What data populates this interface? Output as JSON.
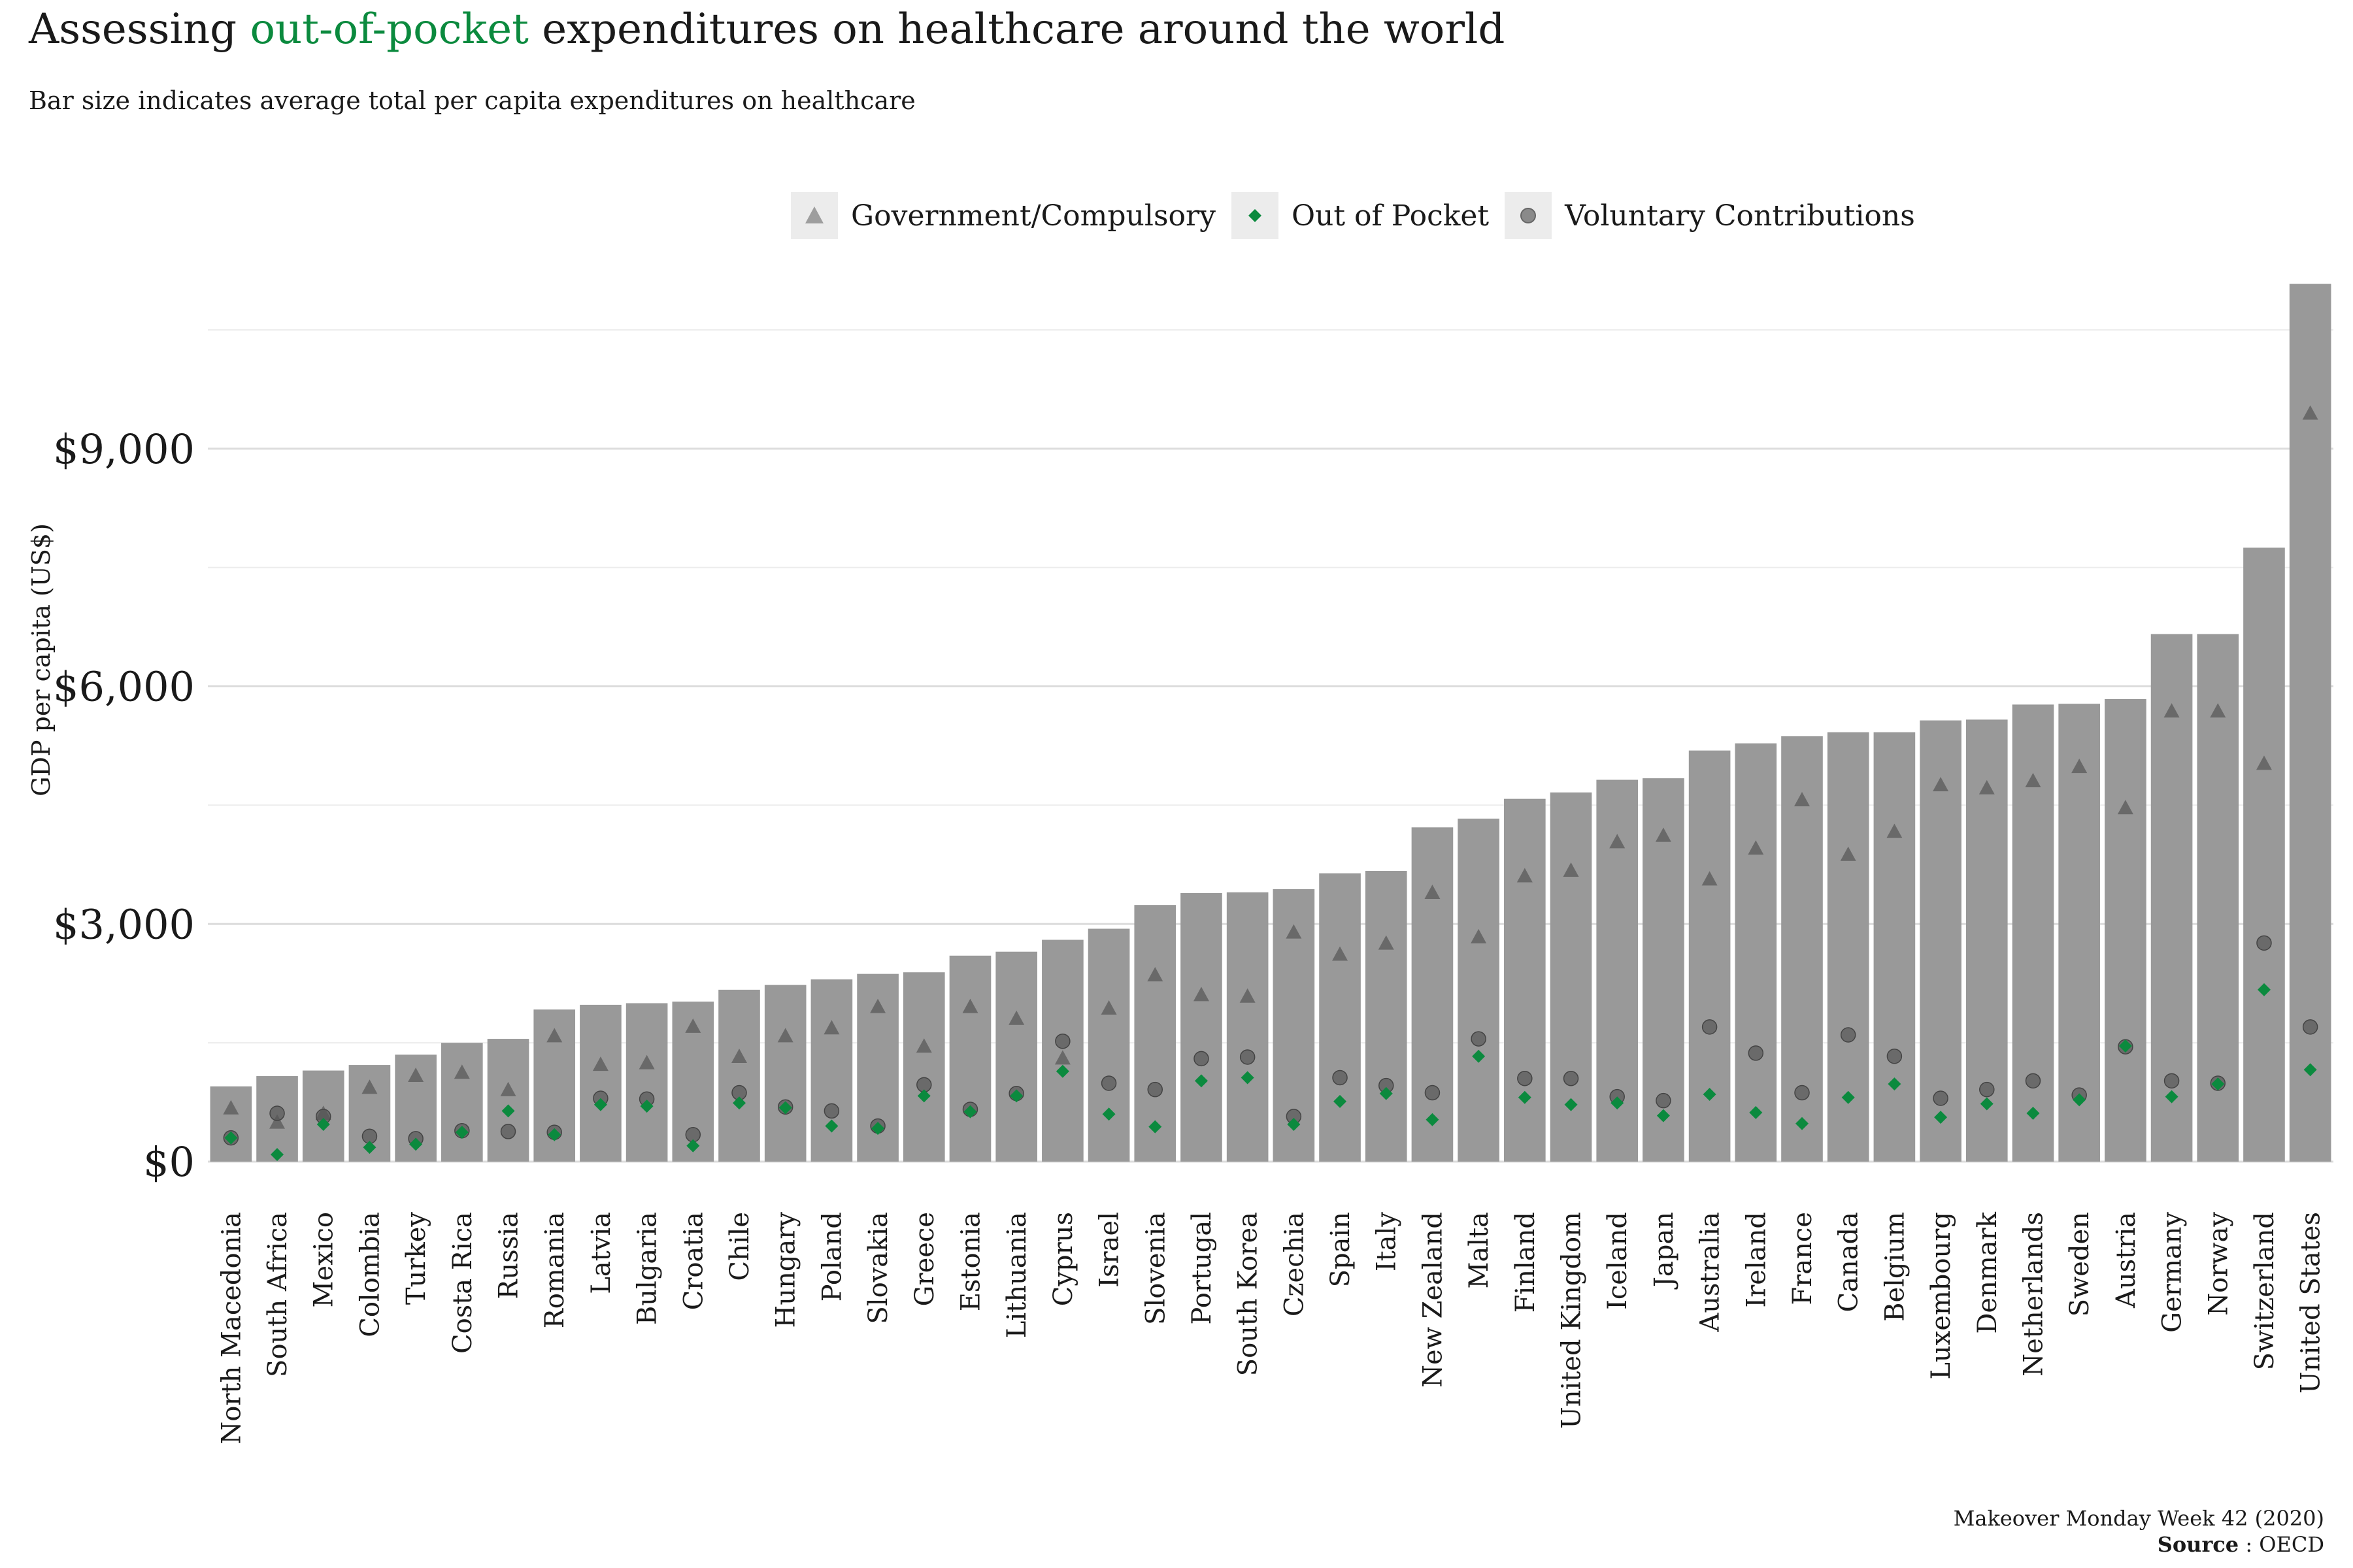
{
  "header": {
    "title_pre": "Assessing",
    "title_highlight": "out-of-pocket",
    "title_post": "expenditures on healthcare around the world",
    "subtitle": "Bar size indicates average total per capita expenditures on healthcare"
  },
  "legend": [
    {
      "label": "Government/Compulsory",
      "shape": "triangle"
    },
    {
      "label": "Out of Pocket",
      "shape": "diamond"
    },
    {
      "label": "Voluntary Contributions",
      "shape": "circle"
    }
  ],
  "caption": {
    "line1": "Makeover Monday Week 42 (2020)",
    "source_label": "Source",
    "source_value": ": OECD"
  },
  "colors": {
    "bar": "#999999",
    "out_of_pocket": "#0b8a3e",
    "government": "#5a5a5a",
    "voluntary": "#555555",
    "highlight": "#0b8a3e"
  },
  "chart_data": {
    "type": "bar",
    "ylabel": "GDP per capita (US$)",
    "ylim": [
      0,
      11200
    ],
    "yticks": [
      0,
      3000,
      6000,
      9000
    ],
    "ytick_labels": [
      "$0",
      "$3,000",
      "$6,000",
      "$9,000"
    ],
    "grid": true,
    "legend_position": "top",
    "categories": [
      "North Macedonia",
      "South Africa",
      "Mexico",
      "Colombia",
      "Turkey",
      "Costa Rica",
      "Russia",
      "Romania",
      "Latvia",
      "Bulgaria",
      "Croatia",
      "Chile",
      "Hungary",
      "Poland",
      "Slovakia",
      "Greece",
      "Estonia",
      "Lithuania",
      "Cyprus",
      "Israel",
      "Slovenia",
      "Portugal",
      "South Korea",
      "Czechia",
      "Spain",
      "Italy",
      "New Zealand",
      "Malta",
      "Finland",
      "United Kingdom",
      "Iceland",
      "Japan",
      "Australia",
      "Ireland",
      "France",
      "Canada",
      "Belgium",
      "Luxembourg",
      "Denmark",
      "Netherlands",
      "Sweden",
      "Austria",
      "Germany",
      "Norway",
      "Switzerland",
      "United States"
    ],
    "bar_values": [
      950,
      1080,
      1150,
      1220,
      1350,
      1500,
      1550,
      1920,
      1980,
      2000,
      2020,
      2170,
      2230,
      2300,
      2370,
      2390,
      2600,
      2650,
      2800,
      2940,
      3240,
      3390,
      3400,
      3440,
      3640,
      3670,
      4220,
      4330,
      4580,
      4660,
      4820,
      4840,
      5190,
      5280,
      5370,
      5420,
      5420,
      5570,
      5580,
      5770,
      5780,
      5840,
      6660,
      6660,
      7750,
      11080
    ],
    "series": [
      {
        "name": "Government/Compulsory",
        "values": [
          670,
          490,
          600,
          930,
          1080,
          1120,
          900,
          1580,
          1220,
          1240,
          1700,
          1320,
          1580,
          1680,
          1950,
          1450,
          1950,
          1800,
          1300,
          1930,
          2350,
          2100,
          2080,
          2890,
          2610,
          2750,
          3390,
          2830,
          3600,
          3670,
          4030,
          4110,
          3560,
          3950,
          4560,
          3870,
          4160,
          4750,
          4710,
          4800,
          4980,
          4460,
          5680,
          5680,
          5020,
          9440
        ]
      },
      {
        "name": "Out of Pocket",
        "values": [
          300,
          90,
          470,
          180,
          220,
          370,
          640,
          340,
          720,
          700,
          200,
          740,
          680,
          450,
          420,
          830,
          630,
          830,
          1140,
          600,
          440,
          1020,
          1060,
          470,
          760,
          860,
          530,
          1330,
          810,
          720,
          740,
          580,
          850,
          620,
          480,
          810,
          980,
          560,
          730,
          610,
          780,
          1460,
          820,
          980,
          2170,
          1160
        ]
      },
      {
        "name": "Voluntary Contributions",
        "values": [
          300,
          610,
          570,
          320,
          290,
          390,
          380,
          370,
          800,
          790,
          340,
          870,
          690,
          640,
          450,
          970,
          660,
          860,
          1520,
          990,
          910,
          1300,
          1320,
          570,
          1060,
          960,
          870,
          1550,
          1050,
          1050,
          820,
          770,
          1700,
          1370,
          870,
          1600,
          1330,
          800,
          910,
          1020,
          840,
          1450,
          1020,
          990,
          2760,
          1700
        ]
      }
    ]
  }
}
